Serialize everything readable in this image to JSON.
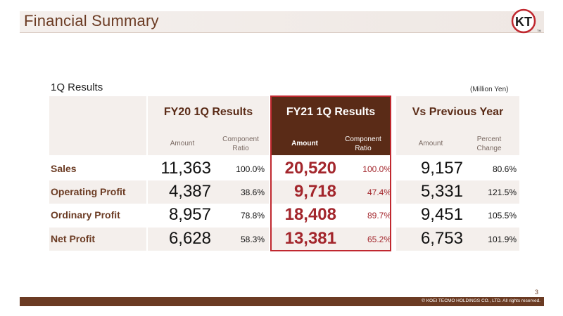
{
  "header": {
    "title": "Financial Summary",
    "logo_text": "KT",
    "logo_tm": "TM"
  },
  "section": {
    "subtitle": "1Q Results",
    "unit": "(Million Yen)"
  },
  "columns": {
    "fy20": {
      "title": "FY20 1Q Results",
      "amount": "Amount",
      "ratio": "Component\nRatio"
    },
    "fy21": {
      "title": "FY21 1Q Results",
      "amount": "Amount",
      "ratio": "Component\nRatio"
    },
    "vs": {
      "title": "Vs Previous Year",
      "amount": "Amount",
      "ratio": "Percent\nChange"
    }
  },
  "rows": [
    {
      "label": "Sales",
      "fy20_amount": "11,363",
      "fy20_ratio": "100.0%",
      "fy21_amount": "20,520",
      "fy21_ratio": "100.0%",
      "vs_amount": "9,157",
      "vs_change": "80.6%"
    },
    {
      "label": "Operating Profit",
      "fy20_amount": "4,387",
      "fy20_ratio": "38.6%",
      "fy21_amount": "9,718",
      "fy21_ratio": "47.4%",
      "vs_amount": "5,331",
      "vs_change": "121.5%"
    },
    {
      "label": "Ordinary Profit",
      "fy20_amount": "8,957",
      "fy20_ratio": "78.8%",
      "fy21_amount": "18,408",
      "fy21_ratio": "89.7%",
      "vs_amount": "9,451",
      "vs_change": "105.5%"
    },
    {
      "label": "Net Profit",
      "fy20_amount": "6,628",
      "fy20_ratio": "58.3%",
      "fy21_amount": "13,381",
      "fy21_ratio": "65.2%",
      "vs_amount": "6,753",
      "vs_change": "101.9%"
    }
  ],
  "footer": {
    "page_number": "3",
    "copyright": "© KOEI TECMO HOLDINGS CO., LTD. All rights reserved."
  },
  "colors": {
    "brand_brown": "#6b3b23",
    "header_dark": "#5a2b17",
    "accent_red": "#a3262c",
    "shade": "#f4efec"
  }
}
